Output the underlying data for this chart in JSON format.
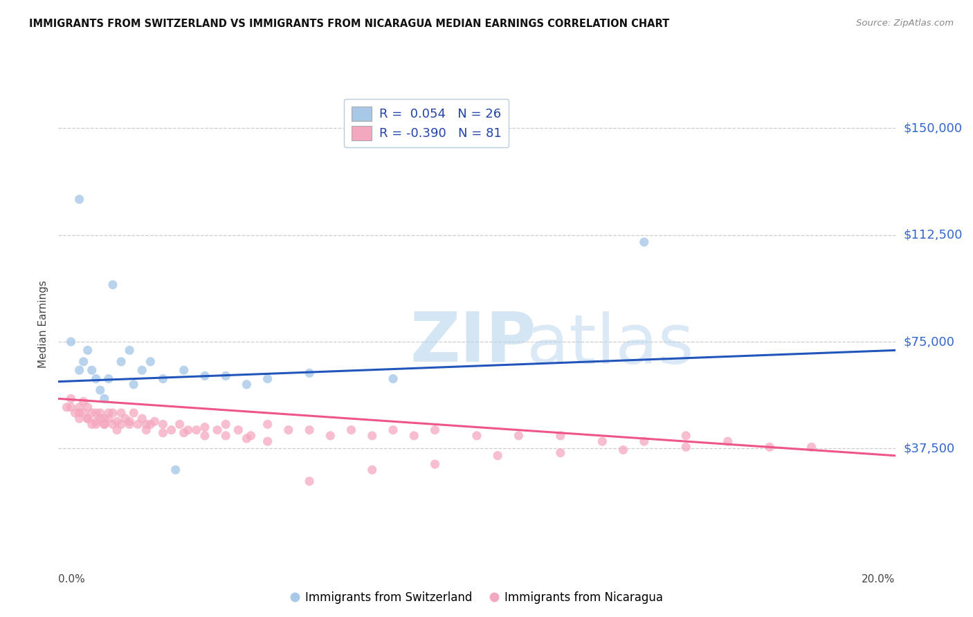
{
  "title": "IMMIGRANTS FROM SWITZERLAND VS IMMIGRANTS FROM NICARAGUA MEDIAN EARNINGS CORRELATION CHART",
  "source": "Source: ZipAtlas.com",
  "ylabel": "Median Earnings",
  "x_min": 0.0,
  "x_max": 0.2,
  "y_min": 0,
  "y_max": 162500,
  "yticks": [
    37500,
    75000,
    112500,
    150000
  ],
  "ytick_labels": [
    "$37,500",
    "$75,000",
    "$112,500",
    "$150,000"
  ],
  "color_swiss": "#a8c8e8",
  "color_nica": "#f4a8c0",
  "trendline_swiss": "#2255bb",
  "trendline_nica": "#ee5588",
  "legend_R_swiss": "R =  0.054",
  "legend_N_swiss": "N = 26",
  "legend_R_nica": "R = -0.390",
  "legend_N_nica": "N = 81",
  "swiss_trend_x0": 0.0,
  "swiss_trend_y0": 61000,
  "swiss_trend_x1": 0.2,
  "swiss_trend_y1": 72000,
  "nica_trend_x0": 0.0,
  "nica_trend_y0": 55000,
  "nica_trend_x1": 0.2,
  "nica_trend_y1": 35000,
  "swiss_x": [
    0.003,
    0.005,
    0.006,
    0.007,
    0.008,
    0.009,
    0.01,
    0.011,
    0.013,
    0.015,
    0.017,
    0.02,
    0.022,
    0.025,
    0.03,
    0.04,
    0.05,
    0.06,
    0.08,
    0.14,
    0.005,
    0.012,
    0.035,
    0.045,
    0.028,
    0.018
  ],
  "swiss_y": [
    75000,
    125000,
    68000,
    72000,
    65000,
    62000,
    58000,
    55000,
    95000,
    68000,
    72000,
    65000,
    68000,
    62000,
    65000,
    63000,
    62000,
    64000,
    62000,
    110000,
    65000,
    62000,
    63000,
    60000,
    30000,
    60000
  ],
  "nica_x": [
    0.002,
    0.003,
    0.004,
    0.005,
    0.005,
    0.006,
    0.006,
    0.007,
    0.007,
    0.008,
    0.008,
    0.009,
    0.009,
    0.01,
    0.01,
    0.011,
    0.011,
    0.012,
    0.012,
    0.013,
    0.013,
    0.014,
    0.015,
    0.015,
    0.016,
    0.017,
    0.018,
    0.019,
    0.02,
    0.021,
    0.022,
    0.023,
    0.025,
    0.027,
    0.029,
    0.031,
    0.033,
    0.035,
    0.038,
    0.04,
    0.043,
    0.046,
    0.05,
    0.055,
    0.06,
    0.065,
    0.07,
    0.075,
    0.08,
    0.085,
    0.09,
    0.1,
    0.11,
    0.12,
    0.13,
    0.14,
    0.15,
    0.16,
    0.17,
    0.18,
    0.003,
    0.005,
    0.007,
    0.009,
    0.011,
    0.014,
    0.017,
    0.021,
    0.025,
    0.03,
    0.035,
    0.04,
    0.045,
    0.05,
    0.06,
    0.075,
    0.09,
    0.105,
    0.12,
    0.135,
    0.15
  ],
  "nica_y": [
    52000,
    55000,
    50000,
    52000,
    48000,
    54000,
    50000,
    52000,
    48000,
    50000,
    46000,
    50000,
    47000,
    48000,
    50000,
    48000,
    46000,
    50000,
    48000,
    50000,
    46000,
    47000,
    50000,
    46000,
    48000,
    47000,
    50000,
    46000,
    48000,
    46000,
    46000,
    47000,
    46000,
    44000,
    46000,
    44000,
    44000,
    45000,
    44000,
    46000,
    44000,
    42000,
    46000,
    44000,
    44000,
    42000,
    44000,
    42000,
    44000,
    42000,
    44000,
    42000,
    42000,
    42000,
    40000,
    40000,
    42000,
    40000,
    38000,
    38000,
    52000,
    50000,
    48000,
    46000,
    46000,
    44000,
    46000,
    44000,
    43000,
    43000,
    42000,
    42000,
    41000,
    40000,
    26000,
    30000,
    32000,
    35000,
    36000,
    37000,
    38000
  ]
}
